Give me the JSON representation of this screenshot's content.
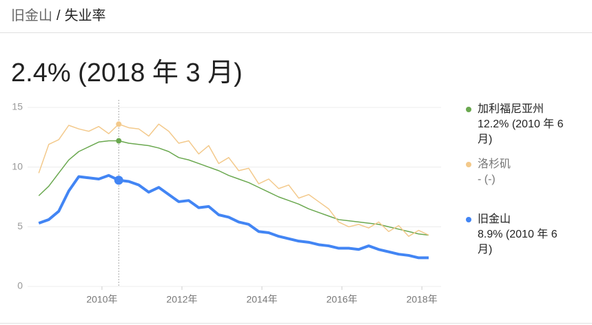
{
  "header": {
    "place": "旧金山",
    "separator": "/",
    "page": "失业率"
  },
  "headline": "2.4% (2018 年 3 月)",
  "chart_data": {
    "type": "line",
    "x": [
      2008.42,
      2008.67,
      2008.92,
      2009.17,
      2009.42,
      2009.67,
      2009.92,
      2010.17,
      2010.42,
      2010.67,
      2010.92,
      2011.17,
      2011.42,
      2011.67,
      2011.92,
      2012.17,
      2012.42,
      2012.67,
      2012.92,
      2013.17,
      2013.42,
      2013.67,
      2013.92,
      2014.17,
      2014.42,
      2014.67,
      2014.92,
      2015.17,
      2015.42,
      2015.67,
      2015.92,
      2016.17,
      2016.42,
      2016.67,
      2016.92,
      2017.17,
      2017.42,
      2017.67,
      2017.92,
      2018.17
    ],
    "series": [
      {
        "name": "加利福尼亚州",
        "legend_value": "12.2% (2010 年 6 月)",
        "color": "#6aa84f",
        "width": 1.5,
        "values": [
          7.6,
          8.4,
          9.5,
          10.6,
          11.3,
          11.7,
          12.1,
          12.2,
          12.2,
          12.0,
          11.9,
          11.8,
          11.6,
          11.3,
          10.8,
          10.6,
          10.3,
          10.0,
          9.7,
          9.3,
          9.0,
          8.7,
          8.3,
          7.9,
          7.5,
          7.2,
          6.9,
          6.5,
          6.2,
          5.9,
          5.6,
          5.5,
          5.4,
          5.3,
          5.2,
          5.0,
          4.8,
          4.6,
          4.4,
          4.3
        ]
      },
      {
        "name": "洛杉矶",
        "legend_value": "- (-)",
        "color": "#f3c98b",
        "width": 1.5,
        "values": [
          9.5,
          11.9,
          12.3,
          13.5,
          13.2,
          13.0,
          13.4,
          12.8,
          13.6,
          13.3,
          13.2,
          12.6,
          13.6,
          13.0,
          12.0,
          12.2,
          11.1,
          11.8,
          10.3,
          10.8,
          9.7,
          9.9,
          8.6,
          9.0,
          8.2,
          8.5,
          7.4,
          7.7,
          7.1,
          6.5,
          5.4,
          5.0,
          5.2,
          4.9,
          5.4,
          4.6,
          5.1,
          4.2,
          4.7,
          4.3
        ]
      },
      {
        "name": "旧金山",
        "legend_value": "8.9% (2010 年 6 月)",
        "color": "#4285f4",
        "width": 4,
        "values": [
          5.3,
          5.6,
          6.3,
          8.0,
          9.2,
          9.1,
          9.0,
          9.3,
          8.9,
          8.8,
          8.5,
          7.9,
          8.3,
          7.7,
          7.1,
          7.2,
          6.6,
          6.7,
          6.0,
          5.8,
          5.4,
          5.2,
          4.6,
          4.5,
          4.2,
          4.0,
          3.8,
          3.7,
          3.5,
          3.4,
          3.2,
          3.2,
          3.1,
          3.4,
          3.1,
          2.9,
          2.7,
          2.6,
          2.4,
          2.4
        ]
      }
    ],
    "highlight_x": 2010.42,
    "xlim": [
      2008.14,
      2018.48
    ],
    "xticks": [
      {
        "value": 2010,
        "label": "2010年"
      },
      {
        "value": 2012,
        "label": "2012年"
      },
      {
        "value": 2014,
        "label": "2014年"
      },
      {
        "value": 2016,
        "label": "2016年"
      },
      {
        "value": 2018,
        "label": "2018年"
      }
    ],
    "ylim": [
      0,
      15
    ],
    "yticks": [
      0,
      5,
      10,
      15
    ],
    "grid": true,
    "legend": "right"
  }
}
